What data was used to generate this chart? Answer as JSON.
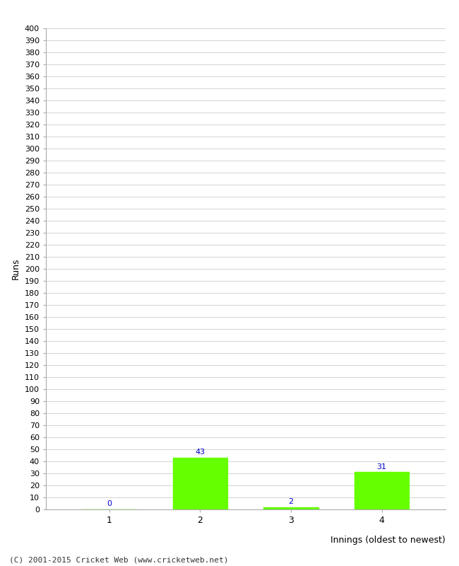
{
  "categories": [
    1,
    2,
    3,
    4
  ],
  "values": [
    0,
    43,
    2,
    31
  ],
  "bar_color": "#66ff00",
  "bar_edge_color": "#66ff00",
  "value_color": "#0000cc",
  "ylabel": "Runs",
  "xlabel": "Innings (oldest to newest)",
  "ylim": [
    0,
    400
  ],
  "ytick_step": 10,
  "background_color": "#ffffff",
  "grid_color": "#cccccc",
  "footer": "(C) 2001-2015 Cricket Web (www.cricketweb.net)"
}
